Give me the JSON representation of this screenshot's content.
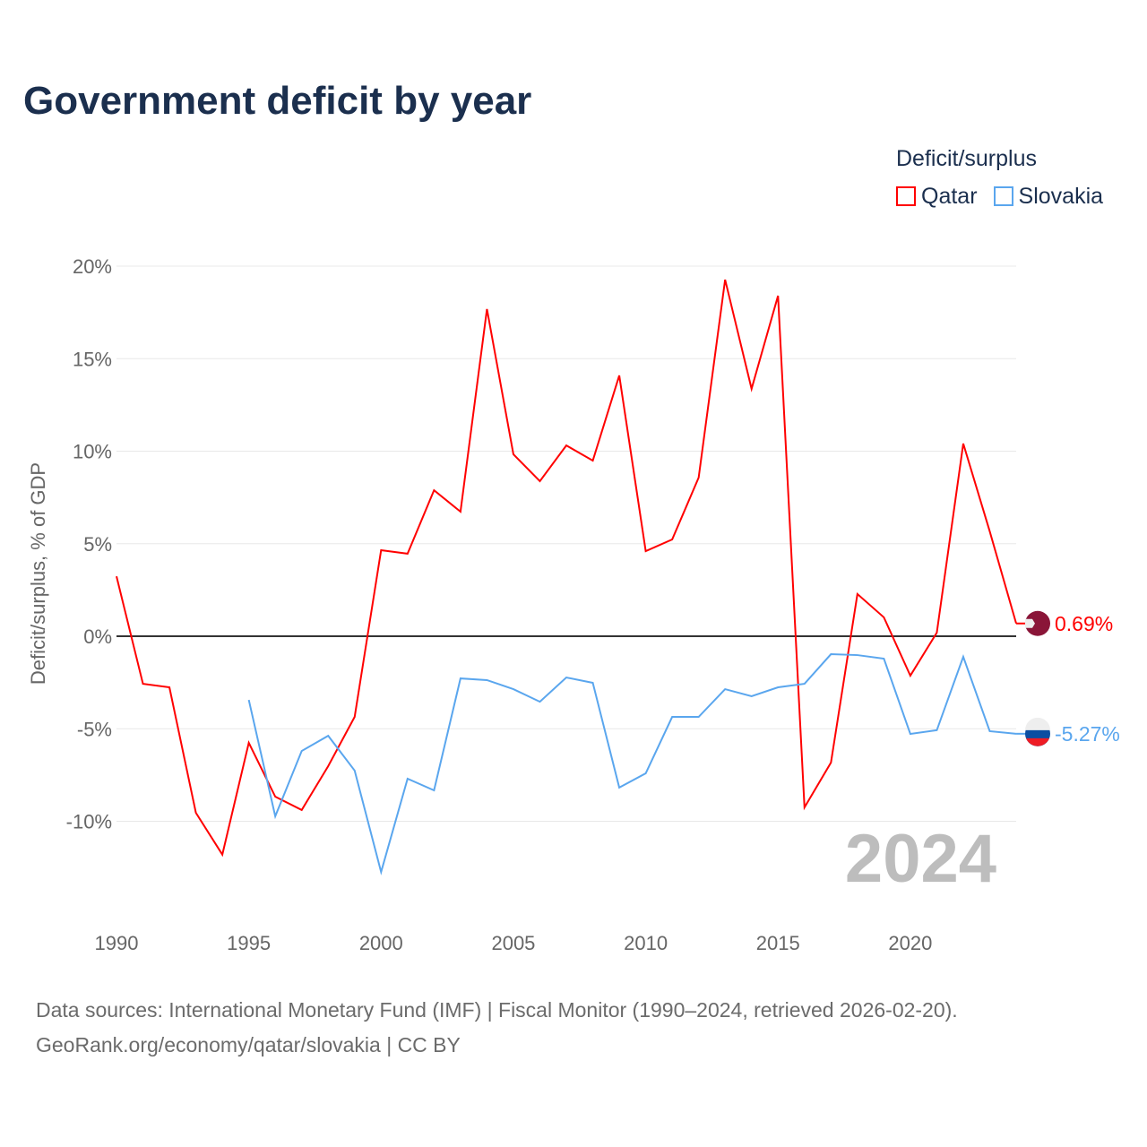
{
  "title": "Government deficit by year",
  "legend": {
    "title": "Deficit/surplus",
    "items": [
      {
        "label": "Qatar",
        "color": "#ff0000"
      },
      {
        "label": "Slovakia",
        "color": "#5aa6ee"
      }
    ]
  },
  "footer": {
    "line1": "Data sources: International Monetary Fund (IMF) | Fiscal Monitor (1990–2024, retrieved 2026-02-20).",
    "line2": "GeoRank.org/economy/qatar/slovakia | CC BY"
  },
  "chart_data": {
    "type": "line",
    "title": "Government deficit by year",
    "ylabel": "Deficit/surplus, % of GDP",
    "xlabel": "",
    "xlim": [
      1990,
      2024
    ],
    "ylim": [
      -14,
      21
    ],
    "yticks": [
      -10,
      -5,
      0,
      5,
      10,
      15,
      20
    ],
    "ytick_labels": [
      "-10%",
      "-5%",
      "0%",
      "5%",
      "10%",
      "15%",
      "20%"
    ],
    "xticks": [
      1990,
      1995,
      2000,
      2005,
      2010,
      2015,
      2020
    ],
    "xtick_labels": [
      "1990",
      "1995",
      "2000",
      "2005",
      "2010",
      "2015",
      "2020"
    ],
    "year_watermark": "2024",
    "series": [
      {
        "name": "Qatar",
        "color": "#ff0000",
        "end_label": "0.69%",
        "start": 1990,
        "values": [
          3.24,
          -2.57,
          -2.76,
          -9.54,
          -11.8,
          -5.76,
          -8.67,
          -9.39,
          -7.02,
          -4.36,
          4.65,
          4.46,
          7.89,
          6.73,
          17.68,
          9.83,
          8.38,
          10.31,
          9.49,
          14.09,
          4.6,
          5.23,
          8.57,
          19.27,
          13.37,
          18.4,
          -9.25,
          -6.83,
          2.28,
          1.02,
          -2.13,
          0.19,
          10.41,
          5.67,
          0.69
        ]
      },
      {
        "name": "Slovakia",
        "color": "#5aa6ee",
        "end_label": "-5.27%",
        "start": 1995,
        "values": [
          -3.44,
          -9.73,
          -6.2,
          -5.38,
          -7.26,
          -12.74,
          -7.7,
          -8.33,
          -2.28,
          -2.37,
          -2.86,
          -3.54,
          -2.23,
          -2.52,
          -8.18,
          -7.41,
          -4.36,
          -4.36,
          -2.86,
          -3.24,
          -2.76,
          -2.57,
          -0.97,
          -1.02,
          -1.21,
          -5.28,
          -5.08,
          -1.11,
          -5.13,
          -5.27
        ]
      }
    ]
  }
}
